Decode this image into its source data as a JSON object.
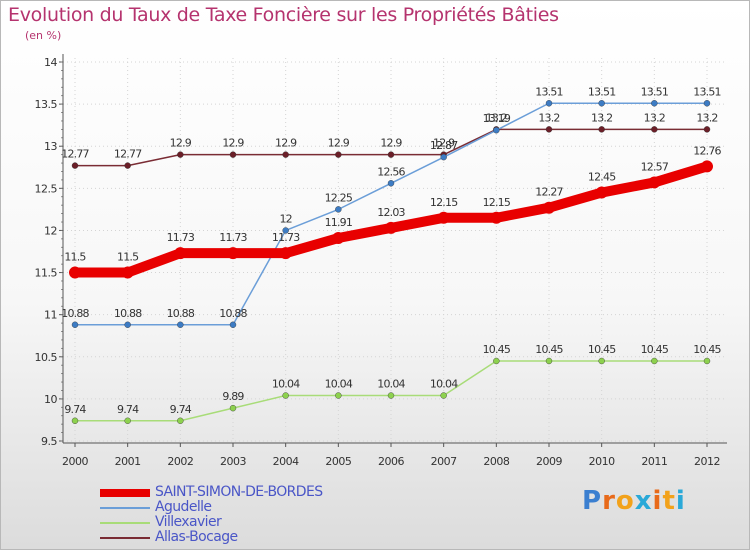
{
  "title": "Evolution du Taux de Taxe Foncière sur les Propriétés Bâties",
  "subtitle": "(en %)",
  "logo": {
    "text": "Proxiti",
    "colors": [
      "#3b7fd0",
      "#e86a1a",
      "#f2a21b",
      "#2aa9d8",
      "#e86a1a",
      "#f2a21b",
      "#2aa9d8"
    ]
  },
  "chart_data": {
    "type": "line",
    "title": "Evolution du Taux de Taxe Foncière sur les Propriétés Bâties",
    "ylabel": "(en %)",
    "xlabel": "",
    "categories": [
      "2000",
      "2001",
      "2002",
      "2003",
      "2004",
      "2005",
      "2006",
      "2007",
      "2008",
      "2009",
      "2010",
      "2011",
      "2012"
    ],
    "ylim": [
      9.5,
      14
    ],
    "yticks": [
      "9.5",
      "10",
      "10.5",
      "11",
      "11.5",
      "12",
      "12.5",
      "13",
      "13.5",
      "14"
    ],
    "legend_position": "bottom-left",
    "series": [
      {
        "name": "SAINT-SIMON-DE-BORDES",
        "color": "#e80000",
        "marker": "#e80000",
        "width": "thick",
        "values": [
          11.5,
          11.5,
          11.73,
          11.73,
          11.73,
          11.91,
          12.03,
          12.15,
          12.15,
          12.27,
          12.45,
          12.57,
          12.76
        ],
        "labels": [
          "11.5",
          "11.5",
          "11.73",
          "11.73",
          "11.73",
          "11.91",
          "12.03",
          "12.15",
          "12.15",
          "12.27",
          "12.45",
          "12.57",
          "12.76"
        ]
      },
      {
        "name": "Agudelle",
        "color": "#6b9ed8",
        "marker": "#3d7cc4",
        "width": "thin",
        "values": [
          10.88,
          10.88,
          10.88,
          10.88,
          12,
          12.25,
          12.56,
          12.87,
          13.19,
          13.51,
          13.51,
          13.51,
          13.51
        ],
        "labels": [
          "10.88",
          "10.88",
          "10.88",
          "10.88",
          "12",
          "12.25",
          "12.56",
          "12.87",
          "13.19",
          "13.51",
          "13.51",
          "13.51",
          "13.51"
        ]
      },
      {
        "name": "Villexavier",
        "color": "#a8dc78",
        "marker": "#8dd14e",
        "width": "thin",
        "values": [
          9.74,
          9.74,
          9.74,
          9.89,
          10.04,
          10.04,
          10.04,
          10.04,
          10.45,
          10.45,
          10.45,
          10.45,
          10.45
        ],
        "labels": [
          "9.74",
          "9.74",
          "9.74",
          "9.89",
          "10.04",
          "10.04",
          "10.04",
          "10.04",
          "10.45",
          "10.45",
          "10.45",
          "10.45",
          "10.45"
        ]
      },
      {
        "name": "Allas-Bocage",
        "color": "#7a2c34",
        "marker": "#6b1f28",
        "width": "thin",
        "values": [
          12.77,
          12.77,
          12.9,
          12.9,
          12.9,
          12.9,
          12.9,
          12.9,
          13.2,
          13.2,
          13.2,
          13.2,
          13.2
        ],
        "labels": [
          "12.77",
          "12.77",
          "12.9",
          "12.9",
          "12.9",
          "12.9",
          "12.9",
          "12.9",
          "13.2",
          "13.2",
          "13.2",
          "13.2",
          "13.2"
        ]
      }
    ]
  }
}
